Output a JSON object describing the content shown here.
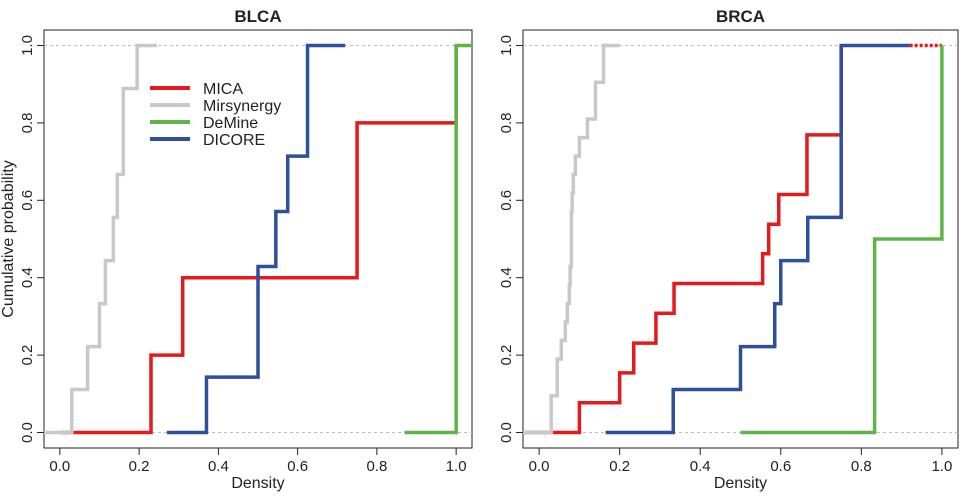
{
  "chart_data": [
    {
      "type": "line",
      "step": true,
      "title": "BLCA",
      "xlabel": "Density",
      "ylabel": "Cumulative probability",
      "xlim": [
        -0.04,
        1.04
      ],
      "ylim": [
        -0.04,
        1.04
      ],
      "xticks": [
        "0.0",
        "0.2",
        "0.4",
        "0.6",
        "0.8",
        "1.0"
      ],
      "yticks": [
        "0.0",
        "0.2",
        "0.4",
        "0.6",
        "0.8",
        "1.0"
      ],
      "reference_lines": [
        0,
        1
      ],
      "legend": {
        "placement": "top-left",
        "entries": [
          "MICA",
          "Mirsynergy",
          "DeMine",
          "DICORE"
        ]
      },
      "series": [
        {
          "name": "MICA",
          "color": "#e41a1c",
          "points": [
            [
              0.0,
              0.0
            ],
            [
              0.23,
              0.0
            ],
            [
              0.23,
              0.2
            ],
            [
              0.31,
              0.2
            ],
            [
              0.31,
              0.4
            ],
            [
              0.75,
              0.4
            ],
            [
              0.75,
              0.8
            ],
            [
              1.0,
              0.8
            ],
            [
              1.0,
              1.0
            ]
          ],
          "lead": [
            0.0,
            0.0
          ],
          "tail": null
        },
        {
          "name": "Mirsynergy",
          "color": "#c8c8c8",
          "points": [
            [
              -0.04,
              0.0
            ],
            [
              0.03,
              0.0
            ],
            [
              0.03,
              0.111
            ],
            [
              0.07,
              0.111
            ],
            [
              0.07,
              0.222
            ],
            [
              0.1,
              0.222
            ],
            [
              0.1,
              0.333
            ],
            [
              0.115,
              0.333
            ],
            [
              0.115,
              0.444
            ],
            [
              0.135,
              0.444
            ],
            [
              0.135,
              0.556
            ],
            [
              0.145,
              0.556
            ],
            [
              0.145,
              0.667
            ],
            [
              0.16,
              0.667
            ],
            [
              0.16,
              0.889
            ],
            [
              0.195,
              0.889
            ],
            [
              0.195,
              1.0
            ],
            [
              0.245,
              1.0
            ]
          ],
          "lead": null,
          "tail": null
        },
        {
          "name": "DeMine",
          "color": "#5db548",
          "points": [
            [
              0.87,
              0.0
            ],
            [
              1.0,
              0.0
            ],
            [
              1.0,
              1.0
            ],
            [
              1.04,
              1.0
            ]
          ],
          "lead": null,
          "tail": null
        },
        {
          "name": "DICORE",
          "color": "#2e4f9a",
          "points": [
            [
              0.27,
              0.0
            ],
            [
              0.37,
              0.0
            ],
            [
              0.37,
              0.143
            ],
            [
              0.5,
              0.143
            ],
            [
              0.5,
              0.429
            ],
            [
              0.545,
              0.429
            ],
            [
              0.545,
              0.571
            ],
            [
              0.575,
              0.571
            ],
            [
              0.575,
              0.714
            ],
            [
              0.625,
              0.714
            ],
            [
              0.625,
              1.0
            ],
            [
              0.72,
              1.0
            ]
          ],
          "lead": null,
          "tail": null
        }
      ]
    },
    {
      "type": "line",
      "step": true,
      "title": "BRCA",
      "xlabel": "Density",
      "ylabel": "",
      "xlim": [
        -0.04,
        1.04
      ],
      "ylim": [
        -0.04,
        1.04
      ],
      "xticks": [
        "0.0",
        "0.2",
        "0.4",
        "0.6",
        "0.8",
        "1.0"
      ],
      "yticks": [
        "0.0",
        "0.2",
        "0.4",
        "0.6",
        "0.8",
        "1.0"
      ],
      "reference_lines": [
        0,
        1
      ],
      "legend": null,
      "series": [
        {
          "name": "MICA",
          "color": "#e41a1c",
          "points": [
            [
              -0.04,
              0.0
            ],
            [
              0.1,
              0.0
            ],
            [
              0.1,
              0.077
            ],
            [
              0.2,
              0.077
            ],
            [
              0.2,
              0.154
            ],
            [
              0.235,
              0.154
            ],
            [
              0.235,
              0.231
            ],
            [
              0.29,
              0.231
            ],
            [
              0.29,
              0.308
            ],
            [
              0.335,
              0.308
            ],
            [
              0.335,
              0.385
            ],
            [
              0.555,
              0.385
            ],
            [
              0.555,
              0.462
            ],
            [
              0.57,
              0.462
            ],
            [
              0.57,
              0.538
            ],
            [
              0.595,
              0.538
            ],
            [
              0.595,
              0.615
            ],
            [
              0.665,
              0.615
            ],
            [
              0.665,
              0.769
            ],
            [
              0.75,
              0.769
            ],
            [
              0.75,
              1.0
            ]
          ],
          "lead": null,
          "tail": [
            0.92,
            1.0
          ]
        },
        {
          "name": "Mirsynergy",
          "color": "#c8c8c8",
          "points": [
            [
              -0.04,
              0.0
            ],
            [
              0.03,
              0.0
            ],
            [
              0.03,
              0.095
            ],
            [
              0.045,
              0.095
            ],
            [
              0.045,
              0.19
            ],
            [
              0.055,
              0.19
            ],
            [
              0.055,
              0.238
            ],
            [
              0.065,
              0.238
            ],
            [
              0.065,
              0.286
            ],
            [
              0.07,
              0.286
            ],
            [
              0.07,
              0.333
            ],
            [
              0.075,
              0.333
            ],
            [
              0.075,
              0.381
            ],
            [
              0.077,
              0.381
            ],
            [
              0.077,
              0.429
            ],
            [
              0.08,
              0.429
            ],
            [
              0.08,
              0.571
            ],
            [
              0.082,
              0.571
            ],
            [
              0.082,
              0.619
            ],
            [
              0.085,
              0.619
            ],
            [
              0.085,
              0.667
            ],
            [
              0.09,
              0.667
            ],
            [
              0.09,
              0.714
            ],
            [
              0.1,
              0.714
            ],
            [
              0.1,
              0.762
            ],
            [
              0.12,
              0.762
            ],
            [
              0.12,
              0.81
            ],
            [
              0.14,
              0.81
            ],
            [
              0.14,
              0.905
            ],
            [
              0.16,
              0.905
            ],
            [
              0.16,
              1.0
            ],
            [
              0.2,
              1.0
            ]
          ],
          "lead": null,
          "tail": null
        },
        {
          "name": "DeMine",
          "color": "#5db548",
          "points": [
            [
              0.5,
              0.0
            ],
            [
              0.833,
              0.0
            ],
            [
              0.833,
              0.5
            ],
            [
              1.0,
              0.5
            ],
            [
              1.0,
              1.0
            ]
          ],
          "lead": null,
          "tail": null
        },
        {
          "name": "DICORE",
          "color": "#2e4f9a",
          "points": [
            [
              0.165,
              0.0
            ],
            [
              0.333,
              0.0
            ],
            [
              0.333,
              0.111
            ],
            [
              0.5,
              0.111
            ],
            [
              0.5,
              0.222
            ],
            [
              0.585,
              0.222
            ],
            [
              0.585,
              0.333
            ],
            [
              0.6,
              0.333
            ],
            [
              0.6,
              0.444
            ],
            [
              0.667,
              0.444
            ],
            [
              0.667,
              0.556
            ],
            [
              0.75,
              0.556
            ],
            [
              0.75,
              1.0
            ],
            [
              0.92,
              1.0
            ]
          ],
          "lead": null,
          "tail": null
        }
      ]
    }
  ]
}
